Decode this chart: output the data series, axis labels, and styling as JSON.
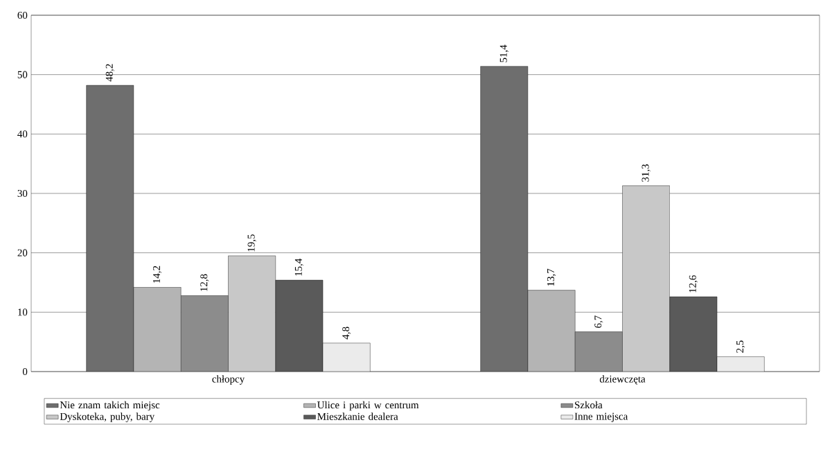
{
  "chart_data": {
    "type": "bar",
    "categories": [
      "chłopcy",
      "dziewczęta"
    ],
    "series": [
      {
        "name": "Nie znam takich miejsc",
        "color": "#6e6e6e",
        "values": [
          48.2,
          51.4
        ],
        "value_labels": [
          "48,2",
          "51,4"
        ]
      },
      {
        "name": "Ulice i parki w centrum",
        "color": "#b4b4b4",
        "values": [
          14.2,
          13.7
        ],
        "value_labels": [
          "14,2",
          "13,7"
        ]
      },
      {
        "name": "Szkoła",
        "color": "#8c8c8c",
        "values": [
          12.8,
          6.7
        ],
        "value_labels": [
          "12,8",
          "6,7"
        ]
      },
      {
        "name": "Dyskoteka, puby, bary",
        "color": "#c8c8c8",
        "values": [
          19.5,
          31.3
        ],
        "value_labels": [
          "19,5",
          "31,3"
        ]
      },
      {
        "name": "Mieszkanie dealera",
        "color": "#5a5a5a",
        "values": [
          15.4,
          12.6
        ],
        "value_labels": [
          "15,4",
          "12,6"
        ]
      },
      {
        "name": "Inne miejsca",
        "color": "#ebebeb",
        "values": [
          4.8,
          2.5
        ],
        "value_labels": [
          "4,8",
          "2,5"
        ]
      }
    ],
    "ylim": [
      0,
      60
    ],
    "yticks": [
      0,
      10,
      20,
      30,
      40,
      50,
      60
    ],
    "grid": "y",
    "legend": "bottom"
  }
}
